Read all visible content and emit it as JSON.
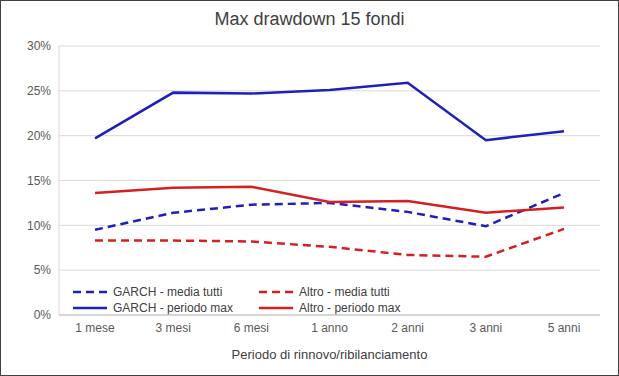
{
  "chart_data": {
    "type": "line",
    "title": "Max drawdown 15 fondi",
    "x_label": "Periodo di rinnovo/ribilanciamento",
    "categories": [
      "1 mese",
      "3 mesi",
      "6 mesi",
      "1 anno",
      "2 anni",
      "3 anni",
      "5 anni"
    ],
    "series": [
      {
        "name": "GARCH - media tutti",
        "color": "#2020b8",
        "line_style": "dashed",
        "values": [
          9.5,
          11.4,
          12.3,
          12.5,
          11.5,
          9.9,
          13.6
        ]
      },
      {
        "name": "Altro - media tutti",
        "color": "#d42020",
        "line_style": "dashed",
        "values": [
          8.3,
          8.3,
          8.2,
          7.6,
          6.7,
          6.5,
          9.6
        ]
      },
      {
        "name": "GARCH - periodo max",
        "color": "#2020b8",
        "line_style": "solid",
        "values": [
          19.7,
          24.8,
          24.7,
          25.1,
          25.9,
          19.5,
          20.5
        ]
      },
      {
        "name": "Altro - periodo max",
        "color": "#d42020",
        "line_style": "solid",
        "values": [
          13.6,
          14.2,
          14.3,
          12.6,
          12.7,
          11.4,
          12.0
        ]
      }
    ],
    "ylim": [
      0,
      30
    ],
    "yticks": [
      {
        "value": 0,
        "label": "0%"
      },
      {
        "value": 5,
        "label": "5%"
      },
      {
        "value": 10,
        "label": "10%"
      },
      {
        "value": 15,
        "label": "15%"
      },
      {
        "value": 20,
        "label": "20%"
      },
      {
        "value": 25,
        "label": "25%"
      },
      {
        "value": 30,
        "label": "30%"
      }
    ],
    "grid": true,
    "legend": "lower left"
  }
}
